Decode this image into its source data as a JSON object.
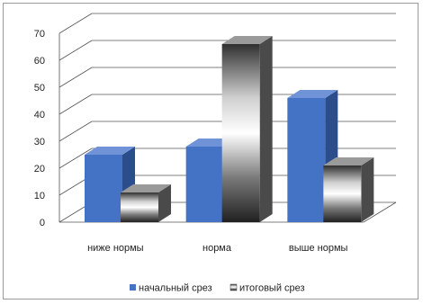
{
  "chart_data": {
    "type": "bar",
    "title": "",
    "xlabel": "",
    "ylabel": "",
    "categories": [
      "ниже нормы",
      "норма",
      "выше нормы"
    ],
    "series": [
      {
        "name": "начальный срез",
        "values": [
          25,
          28,
          46
        ],
        "color": "#4472c4"
      },
      {
        "name": "итоговый срез",
        "values": [
          11,
          66,
          21
        ],
        "color": "#8c8c8c"
      }
    ],
    "y_ticks": [
      "0",
      "10",
      "20",
      "30",
      "40",
      "50",
      "60",
      "70"
    ],
    "ylim": [
      0,
      70
    ],
    "grid": true,
    "legend_position": "bottom",
    "style": "3d-clustered-column"
  }
}
